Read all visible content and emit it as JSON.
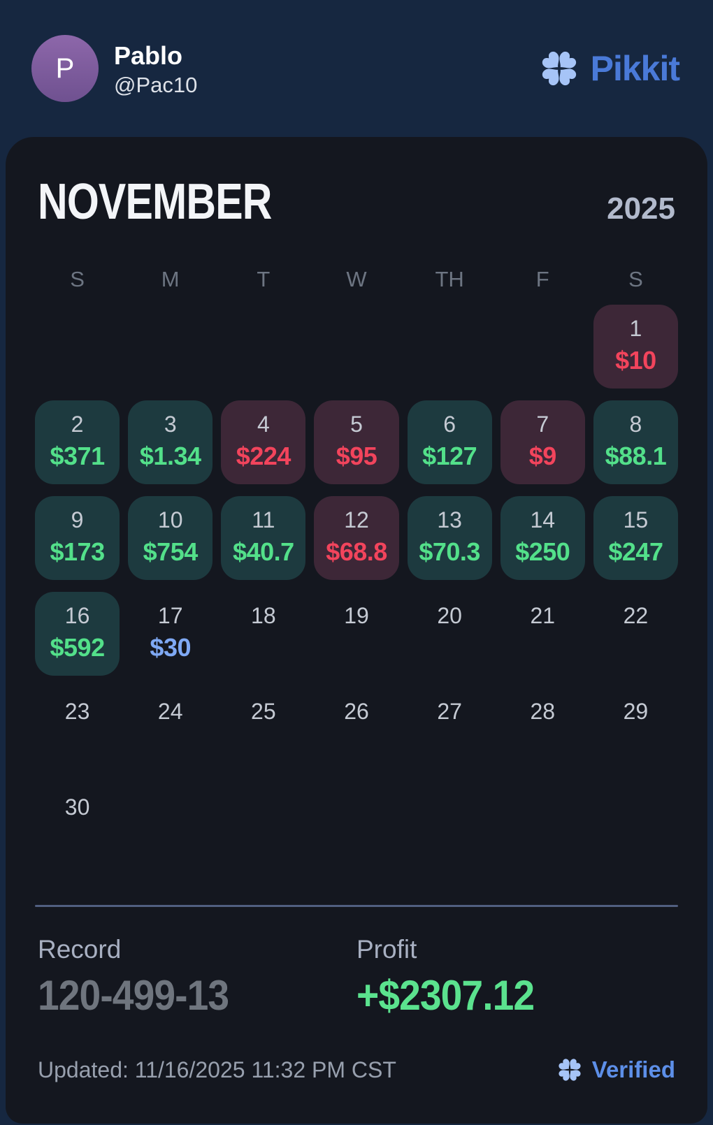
{
  "header": {
    "avatar_initial": "P",
    "name": "Pablo",
    "handle": "@Pac10",
    "brand": "Pikkit"
  },
  "calendar": {
    "month": "NOVEMBER",
    "year": "2025",
    "weekdays": [
      "S",
      "M",
      "T",
      "W",
      "TH",
      "F",
      "S"
    ],
    "cells": [
      {
        "type": "empty"
      },
      {
        "type": "empty"
      },
      {
        "type": "empty"
      },
      {
        "type": "empty"
      },
      {
        "type": "empty"
      },
      {
        "type": "empty"
      },
      {
        "day": "1",
        "amount": "$10",
        "type": "loss"
      },
      {
        "day": "2",
        "amount": "$371",
        "type": "win"
      },
      {
        "day": "3",
        "amount": "$1.34",
        "type": "win"
      },
      {
        "day": "4",
        "amount": "$224",
        "type": "loss"
      },
      {
        "day": "5",
        "amount": "$95",
        "type": "loss"
      },
      {
        "day": "6",
        "amount": "$127",
        "type": "win"
      },
      {
        "day": "7",
        "amount": "$9",
        "type": "loss"
      },
      {
        "day": "8",
        "amount": "$88.1",
        "type": "win"
      },
      {
        "day": "9",
        "amount": "$173",
        "type": "win"
      },
      {
        "day": "10",
        "amount": "$754",
        "type": "win"
      },
      {
        "day": "11",
        "amount": "$40.7",
        "type": "win"
      },
      {
        "day": "12",
        "amount": "$68.8",
        "type": "loss"
      },
      {
        "day": "13",
        "amount": "$70.3",
        "type": "win"
      },
      {
        "day": "14",
        "amount": "$250",
        "type": "win"
      },
      {
        "day": "15",
        "amount": "$247",
        "type": "win"
      },
      {
        "day": "16",
        "amount": "$592",
        "type": "win"
      },
      {
        "day": "17",
        "amount": "$30",
        "type": "info"
      },
      {
        "day": "18",
        "type": "open"
      },
      {
        "day": "19",
        "type": "open"
      },
      {
        "day": "20",
        "type": "open"
      },
      {
        "day": "21",
        "type": "open"
      },
      {
        "day": "22",
        "type": "open"
      },
      {
        "day": "23",
        "type": "open"
      },
      {
        "day": "24",
        "type": "open"
      },
      {
        "day": "25",
        "type": "open"
      },
      {
        "day": "26",
        "type": "open"
      },
      {
        "day": "27",
        "type": "open"
      },
      {
        "day": "28",
        "type": "open"
      },
      {
        "day": "29",
        "type": "open"
      },
      {
        "day": "30",
        "type": "open"
      },
      {
        "type": "empty"
      },
      {
        "type": "empty"
      },
      {
        "type": "empty"
      },
      {
        "type": "empty"
      },
      {
        "type": "empty"
      },
      {
        "type": "empty"
      }
    ]
  },
  "stats": {
    "record_label": "Record",
    "record_value": "120-499-13",
    "profit_label": "Profit",
    "profit_value": "+$2307.12"
  },
  "footer": {
    "updated": "Updated: 11/16/2025 11:32 PM CST",
    "verified_label": "Verified"
  },
  "colors": {
    "win_text": "#53e08a",
    "loss_text": "#f2445c",
    "info_text": "#7fa9f4",
    "profit_value": "#5be28e",
    "brand_blue": "#4a7ad8",
    "clover_blue": "#a6c4f7",
    "win_bg": "#1d3a3f",
    "loss_bg": "#3d2737",
    "header_bg": "#162740",
    "card_bg": "#14171f"
  }
}
